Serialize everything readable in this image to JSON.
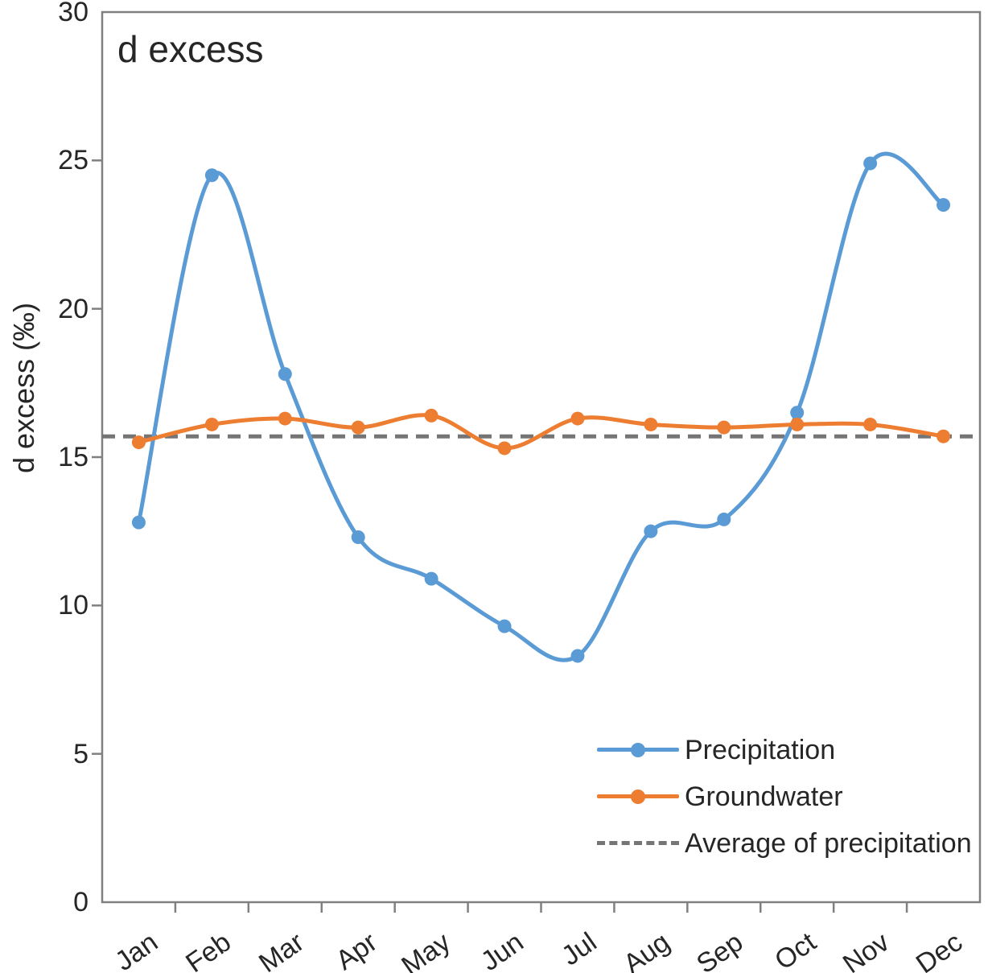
{
  "chart_data": {
    "type": "line",
    "title": "d excess",
    "ylabel": "d excess (‰)",
    "xlabel": "",
    "ylim": [
      0,
      30
    ],
    "yticks": [
      0,
      5,
      10,
      15,
      20,
      25,
      30
    ],
    "grid": false,
    "legend_position": "inside-bottom-right",
    "axis_color": "#808080",
    "text_color": "#262626",
    "categories": [
      "Jan",
      "Feb",
      "Mar",
      "Apr",
      "May",
      "Jun",
      "Jul",
      "Aug",
      "Sep",
      "Oct",
      "Nov",
      "Dec"
    ],
    "series": [
      {
        "name": "Precipitation",
        "color": "#5B9BD5",
        "style": "solid",
        "marker": "circle",
        "smooth": true,
        "values": [
          12.8,
          24.5,
          17.8,
          12.3,
          10.9,
          9.3,
          8.3,
          12.5,
          12.9,
          16.5,
          24.9,
          23.5
        ]
      },
      {
        "name": "Groundwater",
        "color": "#ED7D31",
        "style": "solid",
        "marker": "circle",
        "smooth": true,
        "values": [
          15.5,
          16.1,
          16.3,
          16.0,
          16.4,
          15.3,
          16.3,
          16.1,
          16.0,
          16.1,
          16.1,
          15.7
        ]
      }
    ],
    "reference_line": {
      "name": "Average of precipitation",
      "value": 15.7,
      "color": "#757575",
      "style": "dashed"
    }
  }
}
